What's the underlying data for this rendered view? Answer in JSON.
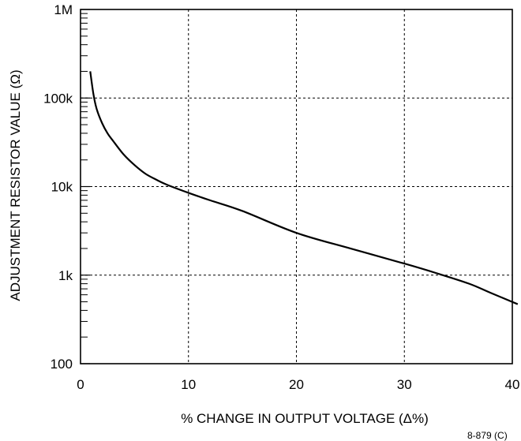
{
  "chart_data": {
    "type": "line",
    "title": "",
    "xlabel": "% CHANGE IN OUTPUT VOLTAGE (Δ%)",
    "ylabel": "ADJUSTMENT RESISTOR VALUE (Ω)",
    "xlim": [
      0,
      40
    ],
    "ylim": [
      100,
      1000000
    ],
    "yscale": "log",
    "grid": true,
    "legend": "none",
    "x_ticks": [
      0,
      10,
      20,
      30,
      40
    ],
    "x_tick_labels": [
      "0",
      "10",
      "20",
      "30",
      "40"
    ],
    "y_ticks": [
      100,
      1000,
      10000,
      100000,
      1000000
    ],
    "y_tick_labels": [
      "100",
      "1k",
      "10k",
      "100k",
      "1M"
    ],
    "series": [
      {
        "x": [
          0.9,
          1.2,
          1.5,
          2.0,
          2.5,
          3.0,
          4.0,
          5.0,
          6.0,
          7.0,
          8.0,
          10.0,
          12.0,
          15.0,
          20.0,
          25.0,
          30.0,
          33.0,
          36.0,
          38.0,
          40.5
        ],
        "y": [
          200000,
          110000,
          75000,
          52000,
          40000,
          33000,
          23000,
          17500,
          14000,
          12000,
          10500,
          8500,
          7000,
          5300,
          3000,
          2000,
          1350,
          1050,
          800,
          630,
          470
        ]
      }
    ],
    "colors": {
      "curve": "#000000",
      "grid": "#000000",
      "axis": "#000000"
    }
  },
  "figure_id": "8-879 (C)"
}
